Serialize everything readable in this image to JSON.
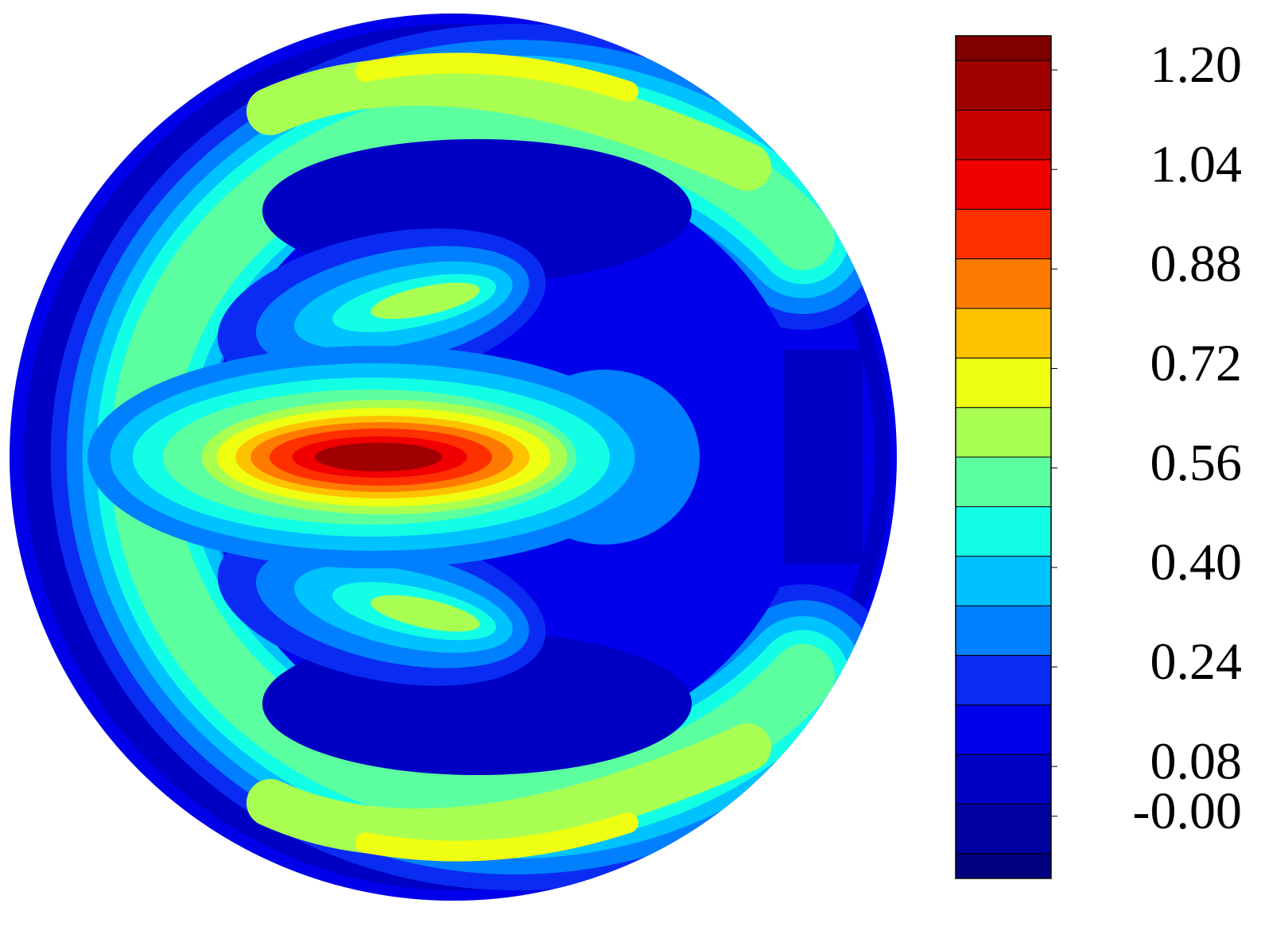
{
  "chart_data": {
    "type": "contour",
    "colorbar": {
      "colors": [
        "#000080",
        "#00009e",
        "#0000c4",
        "#0000ea",
        "#0a2cf2",
        "#0080ff",
        "#00c2ff",
        "#12ffe6",
        "#5cffa0",
        "#a8ff52",
        "#eeff12",
        "#ffc200",
        "#ff7a00",
        "#ff3000",
        "#f00000",
        "#c80000",
        "#a00000",
        "#800000"
      ],
      "clim": [
        -0.1,
        1.255
      ],
      "ticks": [
        {
          "value": 1.2,
          "label": "1.20"
        },
        {
          "value": 1.04,
          "label": "1.04"
        },
        {
          "value": 0.88,
          "label": "0.88"
        },
        {
          "value": 0.72,
          "label": "0.72"
        },
        {
          "value": 0.56,
          "label": "0.56"
        },
        {
          "value": 0.4,
          "label": "0.40"
        },
        {
          "value": 0.24,
          "label": "0.24"
        },
        {
          "value": 0.08,
          "label": "0.08"
        },
        {
          "value": 0,
          "label": "-0.00"
        }
      ]
    }
  }
}
